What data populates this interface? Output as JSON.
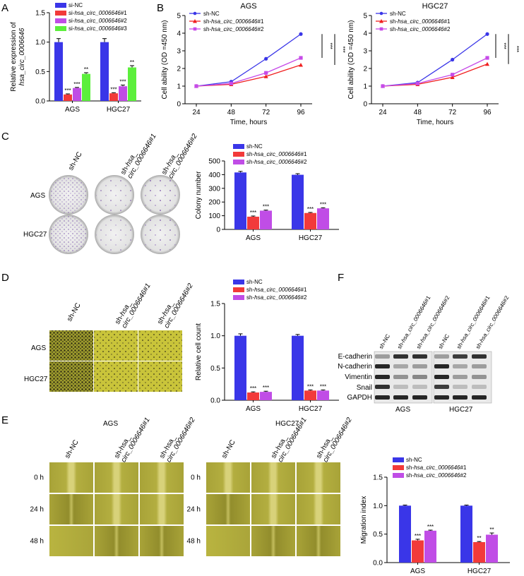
{
  "panel_labels": {
    "a": "A",
    "b": "B",
    "c": "C",
    "d": "D",
    "e": "E",
    "f": "F"
  },
  "colors": {
    "blue": "#3a36e8",
    "red": "#f23a3a",
    "purple": "#c04de6",
    "green": "#5cef3c",
    "line_blue": "#3a36e8",
    "line_red": "#f01f1f",
    "line_purple": "#c64be8"
  },
  "images": {
    "colony_cols": [
      "sh-NC",
      "sh-hsa_\ncirc_0006646#1",
      "sh-hsa_\ncirc_0006646#2"
    ],
    "colony_rows": [
      "AGS",
      "HGC27"
    ],
    "transwell_cols": [
      "sh-NC",
      "sh-hsa_\ncirc_0006646#1",
      "sh-hsa_\ncirc_0006646#2"
    ],
    "transwell_rows": [
      "AGS",
      "HGC27"
    ],
    "wound_titles": [
      "AGS",
      "HGC27"
    ],
    "wound_cols": [
      "sh-NC",
      "sh-hsa_\ncirc_0006646#1",
      "sh-hsa_\ncirc_0006646#2"
    ],
    "wound_rows": [
      "0 h",
      "24 h",
      "48 h"
    ]
  },
  "western": {
    "lanes": [
      "sh-NC",
      "sh-hsa_circ_0006646#1",
      "sh-hsa_circ_0006646#2",
      "sh-NC",
      "sh-hsa_circ_0006646#1",
      "sh-hsa_circ_0006646#2"
    ],
    "proteins": [
      "E-cadherin",
      "N-cadherin",
      "Vimentin",
      "Snail",
      "GAPDH"
    ],
    "groups": [
      "AGS",
      "HGC27"
    ]
  },
  "chart_data": [
    {
      "id": "A",
      "type": "bar",
      "categories": [
        "AGS",
        "HGC27"
      ],
      "series": [
        {
          "name": "si-NC",
          "values": [
            1.0,
            1.0
          ],
          "err": [
            0.06,
            0.06
          ],
          "sig": [
            "",
            ""
          ]
        },
        {
          "name": "si-hsa_circ_0006646#1",
          "values": [
            0.11,
            0.13
          ],
          "err": [
            0.01,
            0.01
          ],
          "sig": [
            "***",
            "***"
          ]
        },
        {
          "name": "si-hsa_circ_0006646#2",
          "values": [
            0.22,
            0.25
          ],
          "err": [
            0.01,
            0.02
          ],
          "sig": [
            "***",
            "***"
          ]
        },
        {
          "name": "si-hsa_circ_0006646#3",
          "values": [
            0.46,
            0.57
          ],
          "err": [
            0.02,
            0.03
          ],
          "sig": [
            "**",
            "**"
          ]
        }
      ],
      "ylabel": "Relative expression of hsa_circ_0006646",
      "ylim": [
        0,
        1.5
      ],
      "yticks": [
        "0.0",
        "0.5",
        "1.0",
        "1.5"
      ]
    },
    {
      "id": "B1",
      "type": "line",
      "title": "AGS",
      "x": [
        24,
        48,
        72,
        96
      ],
      "series": [
        {
          "name": "sh-NC",
          "values": [
            1.0,
            1.25,
            2.55,
            3.95
          ]
        },
        {
          "name": "sh-hsa_circ_0006646#1",
          "values": [
            1.0,
            1.1,
            1.55,
            2.2
          ]
        },
        {
          "name": "sh-hsa_circ_0006646#2",
          "values": [
            1.0,
            1.15,
            1.75,
            2.6
          ]
        }
      ],
      "xlabel": "Time, hours",
      "ylabel": "Cell ability (OD =450 nm)",
      "ylim": [
        0,
        5
      ],
      "yticks": [
        "0",
        "1",
        "2",
        "3",
        "4",
        "5"
      ],
      "sig": [
        "***",
        "***"
      ]
    },
    {
      "id": "B2",
      "type": "line",
      "title": "HGC27",
      "x": [
        24,
        48,
        72,
        96
      ],
      "series": [
        {
          "name": "sh-NC",
          "values": [
            1.0,
            1.2,
            2.5,
            3.95
          ]
        },
        {
          "name": "sh-hsa_circ_0006646#1",
          "values": [
            1.0,
            1.1,
            1.5,
            2.25
          ]
        },
        {
          "name": "sh-hsa_circ_0006646#2",
          "values": [
            1.0,
            1.15,
            1.65,
            2.6
          ]
        }
      ],
      "xlabel": "Time, hours",
      "ylabel": "Cell ability (OD =450 nm)",
      "ylim": [
        0,
        5
      ],
      "yticks": [
        "0",
        "1",
        "2",
        "3",
        "4",
        "5"
      ],
      "sig": [
        "***",
        "***"
      ]
    },
    {
      "id": "C",
      "type": "bar",
      "categories": [
        "AGS",
        "HGC27"
      ],
      "series": [
        {
          "name": "sh-NC",
          "values": [
            416,
            399
          ],
          "err": [
            8,
            8
          ],
          "sig": [
            "",
            ""
          ]
        },
        {
          "name": "sh-hsa_circ_0006646#1",
          "values": [
            93,
            120
          ],
          "err": [
            5,
            4
          ],
          "sig": [
            "***",
            "***"
          ]
        },
        {
          "name": "sh-hsa_circ_0006646#2",
          "values": [
            137,
            154
          ],
          "err": [
            4,
            4
          ],
          "sig": [
            "***",
            "***"
          ]
        }
      ],
      "ylabel": "Colony number",
      "ylim": [
        0,
        500
      ],
      "yticks": [
        "0",
        "100",
        "200",
        "300",
        "400",
        "500"
      ]
    },
    {
      "id": "D",
      "type": "bar",
      "categories": [
        "AGS",
        "HGC27"
      ],
      "series": [
        {
          "name": "sh-NC",
          "values": [
            1.0,
            1.0
          ],
          "err": [
            0.03,
            0.02
          ],
          "sig": [
            "",
            ""
          ]
        },
        {
          "name": "sh-hsa_circ_0006646#1",
          "values": [
            0.12,
            0.15
          ],
          "err": [
            0.01,
            0.01
          ],
          "sig": [
            "***",
            "***"
          ]
        },
        {
          "name": "sh-hsa_circ_0006646#2",
          "values": [
            0.13,
            0.15
          ],
          "err": [
            0.01,
            0.01
          ],
          "sig": [
            "***",
            "***"
          ]
        }
      ],
      "ylabel": "Relative cell count",
      "ylim": [
        0,
        1.5
      ],
      "yticks": [
        "0.0",
        "0.5",
        "1.0",
        "1.5"
      ]
    },
    {
      "id": "E",
      "type": "bar",
      "categories": [
        "AGS",
        "HGC27"
      ],
      "series": [
        {
          "name": "sh-NC",
          "values": [
            1.0,
            1.0
          ],
          "err": [
            0.01,
            0.01
          ],
          "sig": [
            "",
            ""
          ]
        },
        {
          "name": "sh-hsa_circ_0006646#1",
          "values": [
            0.39,
            0.36
          ],
          "err": [
            0.02,
            0.01
          ],
          "sig": [
            "***",
            "**"
          ]
        },
        {
          "name": "sh-hsa_circ_0006646#2",
          "values": [
            0.56,
            0.49
          ],
          "err": [
            0.01,
            0.03
          ],
          "sig": [
            "***",
            "**"
          ]
        }
      ],
      "ylabel": "Migration index",
      "ylim": [
        0,
        1.5
      ],
      "yticks": [
        "0.0",
        "0.5",
        "1.0",
        "1.5"
      ]
    }
  ]
}
